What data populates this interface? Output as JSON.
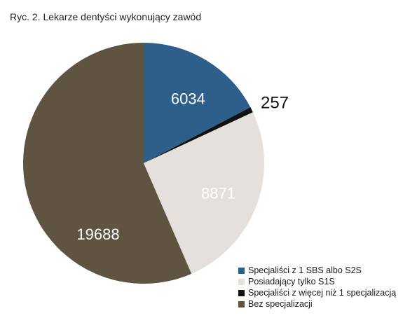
{
  "title": "Ryc. 2. Lekarze dentyści wykonujący zawód",
  "chart_data": {
    "type": "pie",
    "title": "Ryc. 2. Lekarze dentyści wykonujący zawód",
    "legend_position": "bottom-right",
    "slices": [
      {
        "label": "Specjaliści z 1 SBS albo S2S",
        "value": 6034,
        "value_label": "6034",
        "color": "#2e5e8a"
      },
      {
        "label": "Specjaliści z więcej niż 1 specjalizacją",
        "value": 257,
        "value_label": "257",
        "color": "#111111"
      },
      {
        "label": "Posiadający tylko S1S",
        "value": 8871,
        "value_label": "8871",
        "color": "#e6e0dc"
      },
      {
        "label": "Bez specjalizacji",
        "value": 19688,
        "value_label": "19688",
        "color": "#5e5441"
      }
    ]
  },
  "legend": {
    "items": [
      {
        "label": "Specjaliści z 1 SBS albo S2S",
        "color": "#2e5e8a"
      },
      {
        "label": "Posiadający tylko S1S",
        "color": "#e6e0dc"
      },
      {
        "label": "Specjaliści z więcej niż 1 specjalizacją",
        "color": "#111111"
      },
      {
        "label": "Bez specjalizacji",
        "color": "#5e5441"
      }
    ]
  }
}
